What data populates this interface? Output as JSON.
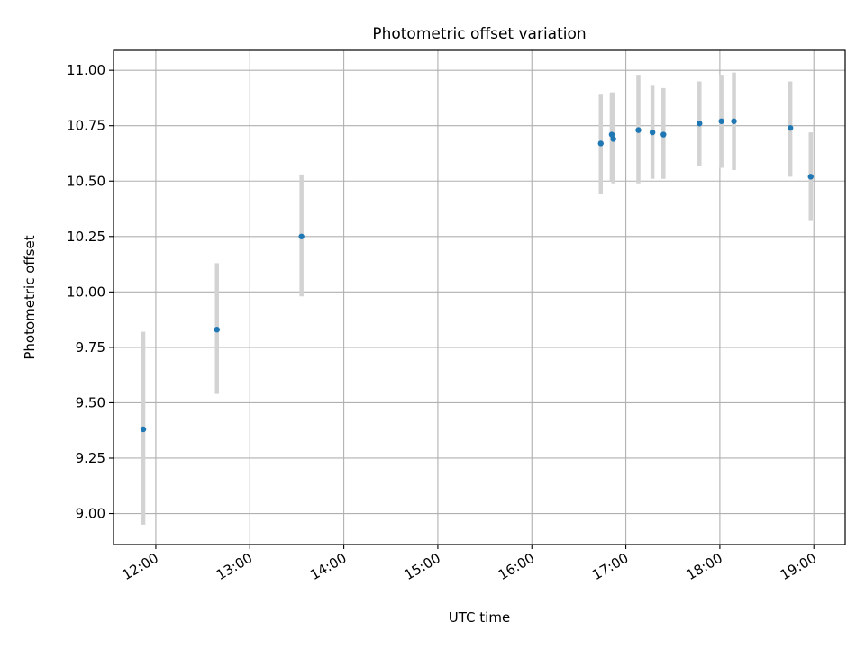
{
  "chart_data": {
    "type": "scatter",
    "title": "Photometric offset variation",
    "xlabel": "UTC time",
    "ylabel": "Photometric offset",
    "x_unit": "UTC time of day (HH:MM)",
    "xlim": [
      "11:33",
      "19:20"
    ],
    "ylim": [
      8.86,
      11.09
    ],
    "xticks": [
      "12:00",
      "13:00",
      "14:00",
      "15:00",
      "16:00",
      "17:00",
      "18:00",
      "19:00"
    ],
    "yticks": [
      "9.00",
      "9.25",
      "9.50",
      "9.75",
      "10.00",
      "10.25",
      "10.50",
      "10.75",
      "11.00"
    ],
    "grid": true,
    "colors": {
      "point": "#1f77b4",
      "errorbar": "#d3d3d3",
      "grid": "#b0b0b0"
    },
    "series": [
      {
        "points": [
          {
            "x": "11:52",
            "y": 9.38,
            "err_low": 8.95,
            "err_high": 9.82
          },
          {
            "x": "12:39",
            "y": 9.83,
            "err_low": 9.54,
            "err_high": 10.13
          },
          {
            "x": "13:33",
            "y": 10.25,
            "err_low": 9.98,
            "err_high": 10.53
          },
          {
            "x": "16:44",
            "y": 10.67,
            "err_low": 10.44,
            "err_high": 10.89
          },
          {
            "x": "16:51",
            "y": 10.71,
            "err_low": 10.5,
            "err_high": 10.9
          },
          {
            "x": "16:52",
            "y": 10.69,
            "err_low": 10.49,
            "err_high": 10.9
          },
          {
            "x": "17:08",
            "y": 10.73,
            "err_low": 10.49,
            "err_high": 10.98
          },
          {
            "x": "17:17",
            "y": 10.72,
            "err_low": 10.51,
            "err_high": 10.93
          },
          {
            "x": "17:24",
            "y": 10.71,
            "err_low": 10.51,
            "err_high": 10.92
          },
          {
            "x": "17:47",
            "y": 10.76,
            "err_low": 10.57,
            "err_high": 10.95
          },
          {
            "x": "18:01",
            "y": 10.77,
            "err_low": 10.56,
            "err_high": 10.98
          },
          {
            "x": "18:09",
            "y": 10.77,
            "err_low": 10.55,
            "err_high": 10.99
          },
          {
            "x": "18:45",
            "y": 10.74,
            "err_low": 10.52,
            "err_high": 10.95
          },
          {
            "x": "18:58",
            "y": 10.52,
            "err_low": 10.32,
            "err_high": 10.72
          }
        ]
      }
    ]
  }
}
